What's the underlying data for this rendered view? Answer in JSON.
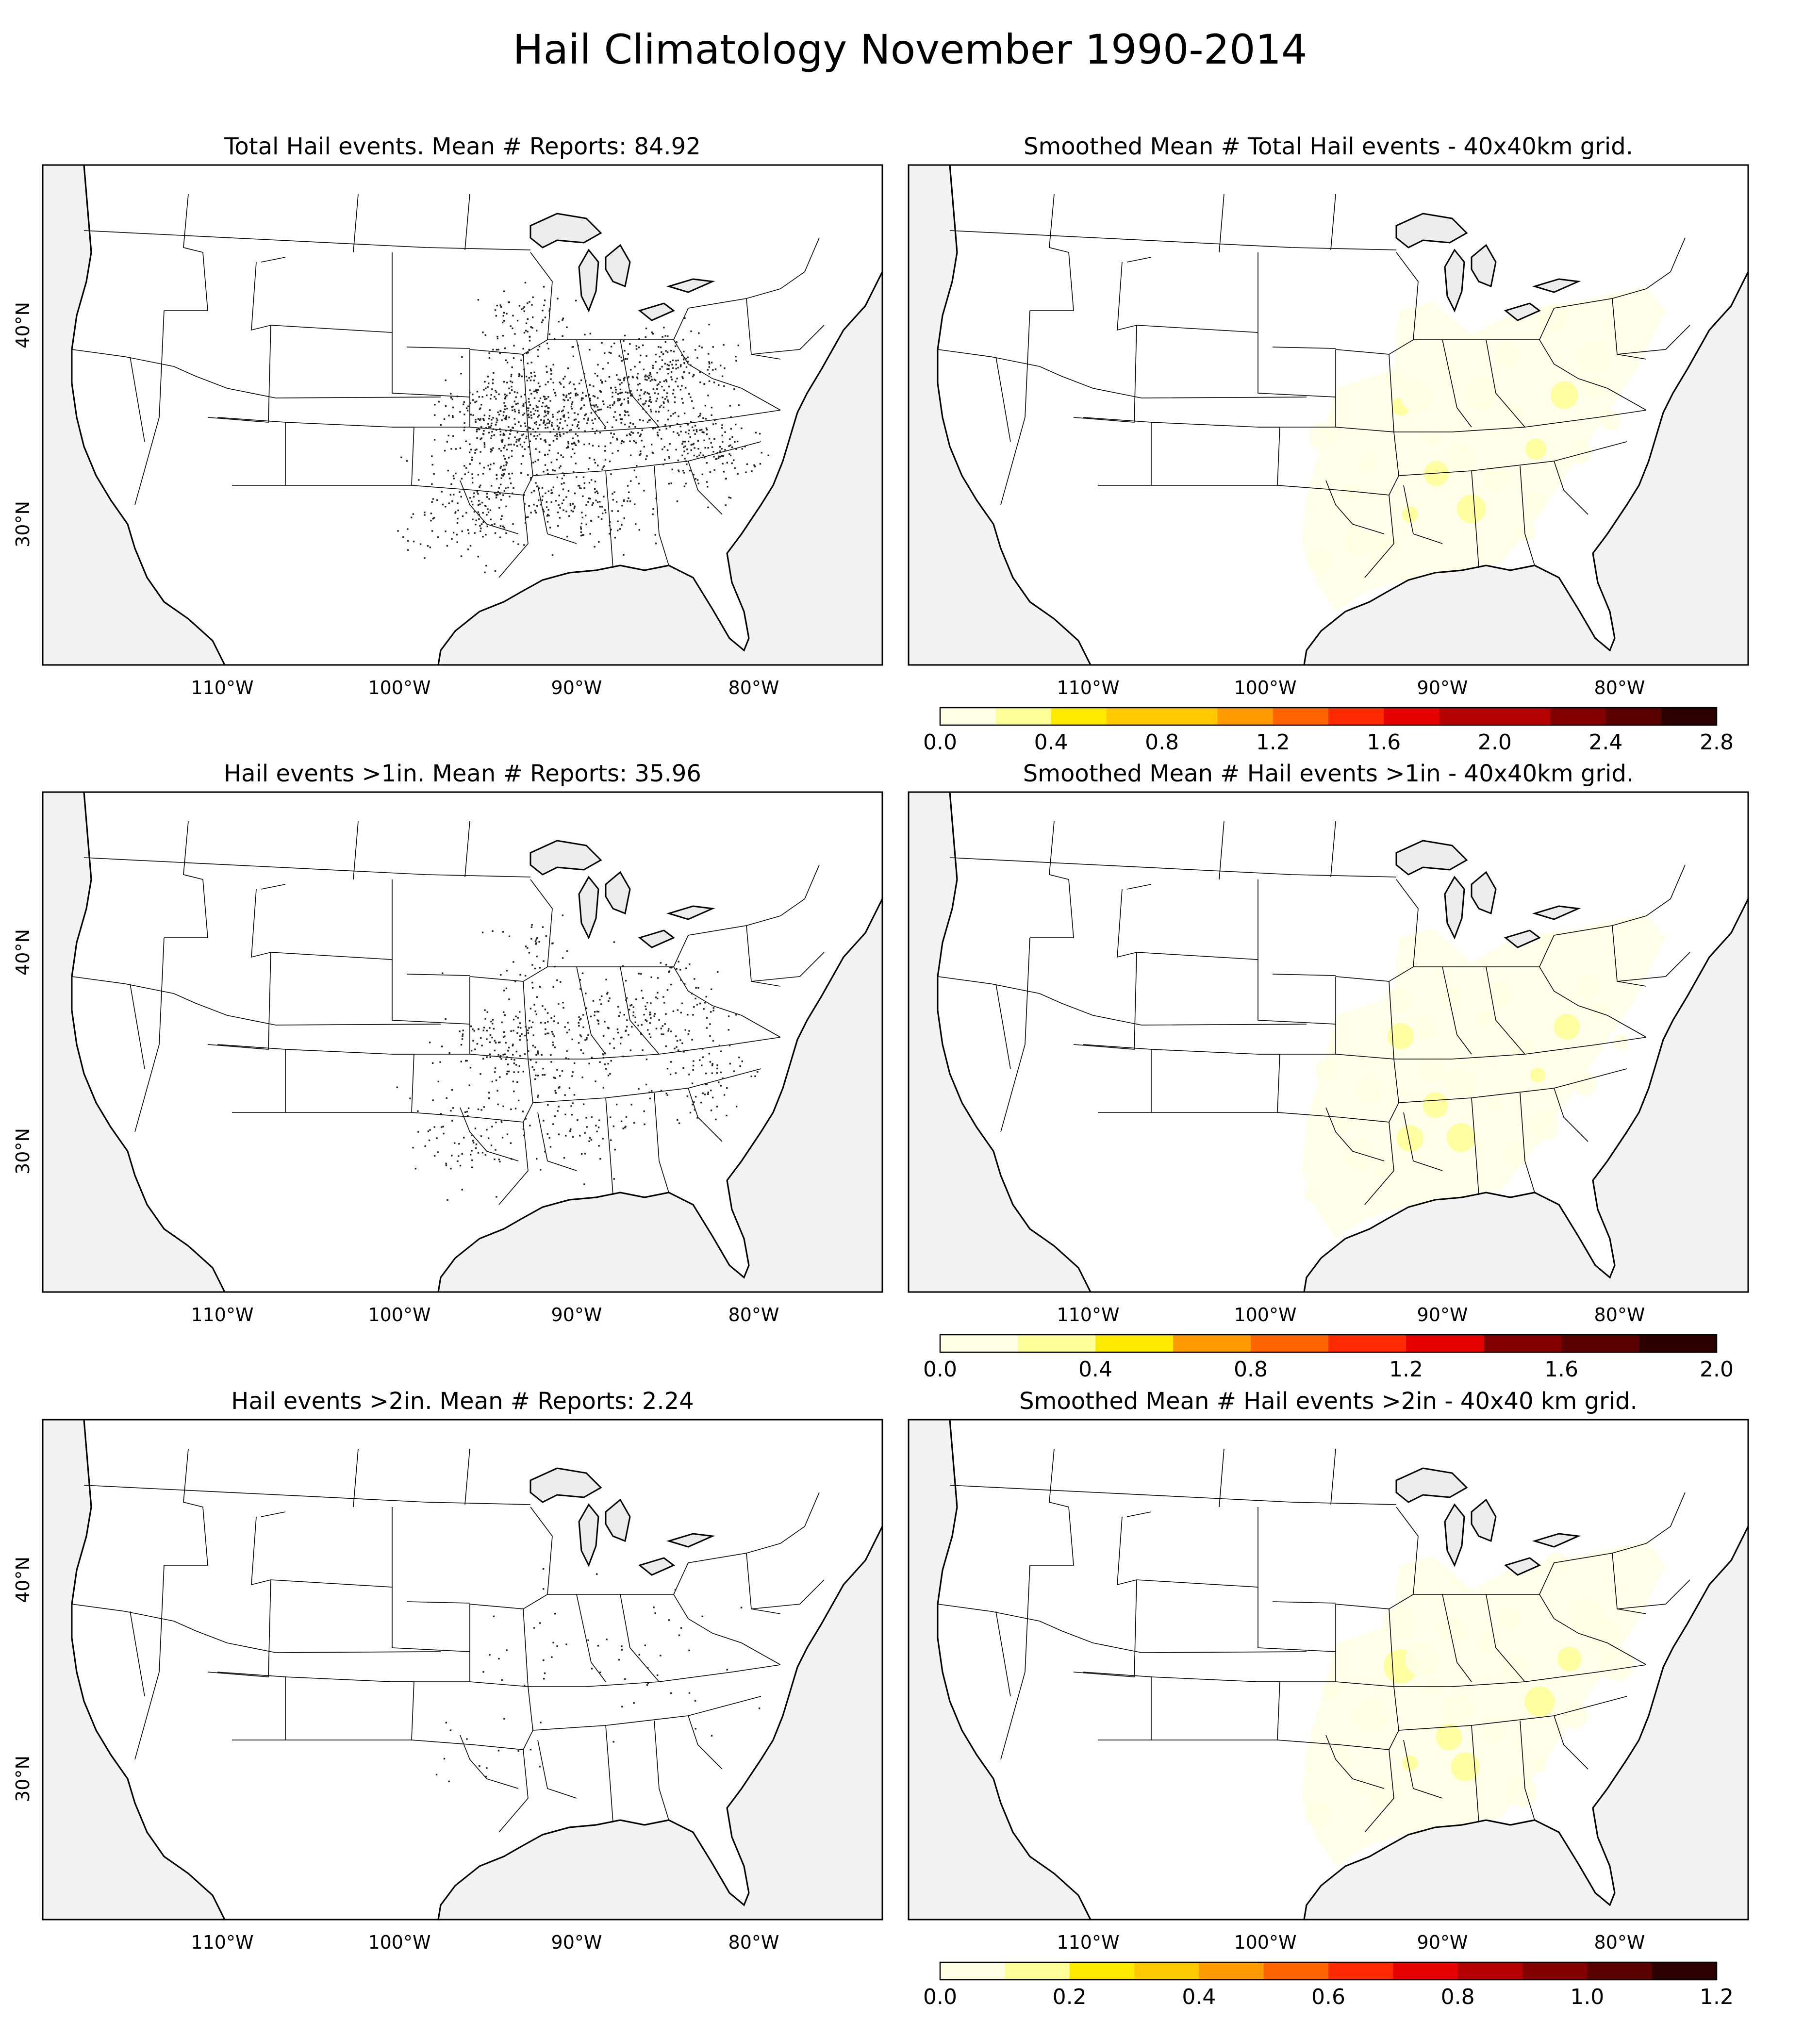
{
  "figure": {
    "title": "Hail Climatology November 1990-2014"
  },
  "colors": {
    "ocean": "#f2f2f2",
    "land": "#ffffff",
    "lake": "#ececec",
    "border": "#000000",
    "dot": "#222222",
    "colormap": [
      "#ffffe6",
      "#ffff99",
      "#ffea00",
      "#ffc800",
      "#ff9a00",
      "#ff6400",
      "#ff2a00",
      "#e60000",
      "#b40000",
      "#820000",
      "#5a0000",
      "#2d0000"
    ]
  },
  "axes": {
    "lon_ticks": [
      "110°W",
      "100°W",
      "90°W",
      "80°W"
    ],
    "lat_ticks": [
      "40°N",
      "30°N"
    ]
  },
  "panels": [
    {
      "id": "total-reports",
      "kind": "dots",
      "title": "Total Hail events. Mean # Reports: 84.92",
      "density": "high"
    },
    {
      "id": "total-smoothed",
      "kind": "smoothed",
      "title": "Smoothed Mean # Total Hail events - 40x40km grid.",
      "colorbar": {
        "min": 0.0,
        "max": 2.8,
        "step": 0.2,
        "tick_labels": [
          "0.0",
          "0.4",
          "0.8",
          "1.2",
          "1.6",
          "2.0",
          "2.4",
          "2.8"
        ]
      }
    },
    {
      "id": "gt1in-reports",
      "kind": "dots",
      "title": "Hail events >1in. Mean # Reports: 35.96",
      "density": "medium"
    },
    {
      "id": "gt1in-smoothed",
      "kind": "smoothed",
      "title": "Smoothed Mean # Hail events >1in - 40x40km grid.",
      "colorbar": {
        "min": 0.0,
        "max": 2.0,
        "step": 0.2,
        "tick_labels": [
          "0.0",
          "0.4",
          "0.8",
          "1.2",
          "1.6",
          "2.0"
        ]
      }
    },
    {
      "id": "gt2in-reports",
      "kind": "dots",
      "title": "Hail events >2in. Mean # Reports: 2.24",
      "density": "low"
    },
    {
      "id": "gt2in-smoothed",
      "kind": "smoothed",
      "title": "Smoothed Mean # Hail events >2in - 40x40 km grid.",
      "colorbar": {
        "min": 0.0,
        "max": 1.2,
        "step": 0.1,
        "tick_labels": [
          "0.0",
          "0.2",
          "0.4",
          "0.6",
          "0.8",
          "1.0",
          "1.2"
        ]
      }
    }
  ]
}
